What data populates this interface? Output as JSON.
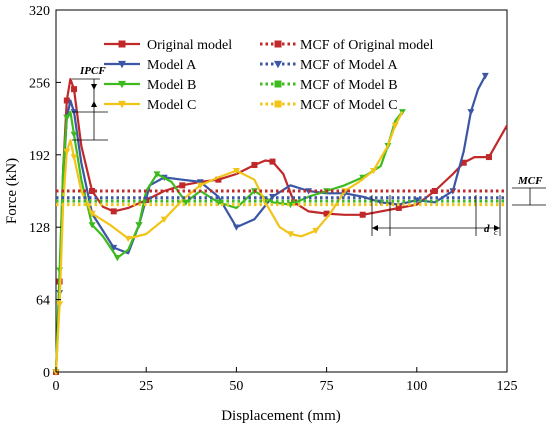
{
  "chart_data": {
    "type": "line",
    "xlabel": "Displacement (mm)",
    "ylabel": "Force (kN)",
    "xlim": [
      0,
      125
    ],
    "ylim": [
      0,
      320
    ],
    "xticks": [
      "0",
      "25",
      "50",
      "75",
      "100",
      "125"
    ],
    "yticks": [
      "0",
      "64",
      "128",
      "192",
      "256",
      "320"
    ],
    "grid": false,
    "legend_position": "top",
    "annotations": {
      "ipcf": "IPCF",
      "mcf": "MCF",
      "dc_main": "d",
      "dc_sub": "c"
    },
    "series": [
      {
        "name": "Original model",
        "color": "#c0282a",
        "marker": "square",
        "x": [
          0,
          1,
          2,
          3,
          4,
          5,
          7,
          10,
          13,
          16,
          20,
          25,
          30,
          35,
          40,
          45,
          50,
          55,
          58,
          60,
          63,
          66,
          70,
          75,
          80,
          85,
          90,
          95,
          100,
          105,
          110,
          113,
          116,
          120,
          125
        ],
        "y": [
          0,
          80,
          180,
          240,
          259,
          250,
          200,
          160,
          146,
          142,
          145,
          152,
          160,
          165,
          168,
          170,
          175,
          183,
          187,
          186,
          175,
          150,
          142,
          140,
          139,
          139,
          142,
          145,
          148,
          160,
          175,
          185,
          190,
          190,
          218
        ]
      },
      {
        "name": "Model A",
        "color": "#3a56a4",
        "marker": "triangle-down",
        "x": [
          0,
          1,
          2,
          3,
          4,
          5,
          7,
          10,
          13,
          16,
          20,
          23,
          26,
          30,
          35,
          40,
          45,
          50,
          55,
          60,
          65,
          70,
          75,
          80,
          85,
          90,
          95,
          100,
          105,
          110,
          113,
          115,
          117,
          119
        ],
        "y": [
          0,
          70,
          170,
          225,
          240,
          230,
          185,
          140,
          125,
          110,
          105,
          130,
          165,
          172,
          170,
          168,
          155,
          128,
          135,
          155,
          165,
          160,
          158,
          158,
          155,
          150,
          148,
          152,
          150,
          160,
          195,
          230,
          250,
          262
        ]
      },
      {
        "name": "Model B",
        "color": "#3dbb1e",
        "marker": "triangle-down",
        "x": [
          0,
          1,
          2,
          3,
          4,
          5,
          7,
          10,
          13,
          17,
          20,
          23,
          25,
          28,
          32,
          36,
          40,
          45,
          50,
          55,
          60,
          65,
          70,
          75,
          80,
          85,
          90,
          92,
          94,
          96
        ],
        "y": [
          0,
          90,
          180,
          225,
          230,
          210,
          170,
          130,
          120,
          101,
          108,
          130,
          160,
          175,
          168,
          150,
          160,
          150,
          145,
          160,
          150,
          148,
          155,
          160,
          165,
          172,
          182,
          200,
          222,
          230
        ]
      },
      {
        "name": "Model C",
        "color": "#f2c418",
        "marker": "triangle-down",
        "x": [
          0,
          1,
          2,
          3,
          4,
          5,
          7,
          10,
          15,
          20,
          25,
          30,
          35,
          40,
          45,
          50,
          55,
          58,
          62,
          65,
          68,
          72,
          76,
          80,
          84,
          88,
          92,
          94,
          96
        ],
        "y": [
          0,
          60,
          150,
          195,
          205,
          190,
          160,
          140,
          130,
          118,
          122,
          135,
          152,
          165,
          172,
          178,
          170,
          150,
          128,
          122,
          120,
          125,
          140,
          160,
          168,
          178,
          200,
          218,
          230
        ]
      },
      {
        "name": "MCF of Original model",
        "color": "#c0282a",
        "marker": "square",
        "dotted": true,
        "x": [
          0,
          125
        ],
        "y": [
          160,
          160
        ]
      },
      {
        "name": "MCF of Model A",
        "color": "#3a56a4",
        "marker": "triangle-down",
        "dotted": true,
        "x": [
          0,
          125
        ],
        "y": [
          154,
          154
        ]
      },
      {
        "name": "MCF of Model B",
        "color": "#3dbb1e",
        "marker": "square",
        "dotted": true,
        "x": [
          0,
          125
        ],
        "y": [
          151,
          151
        ]
      },
      {
        "name": "MCF of Model C",
        "color": "#f2c418",
        "marker": "square",
        "dotted": true,
        "x": [
          0,
          125
        ],
        "y": [
          148,
          148
        ]
      }
    ]
  }
}
